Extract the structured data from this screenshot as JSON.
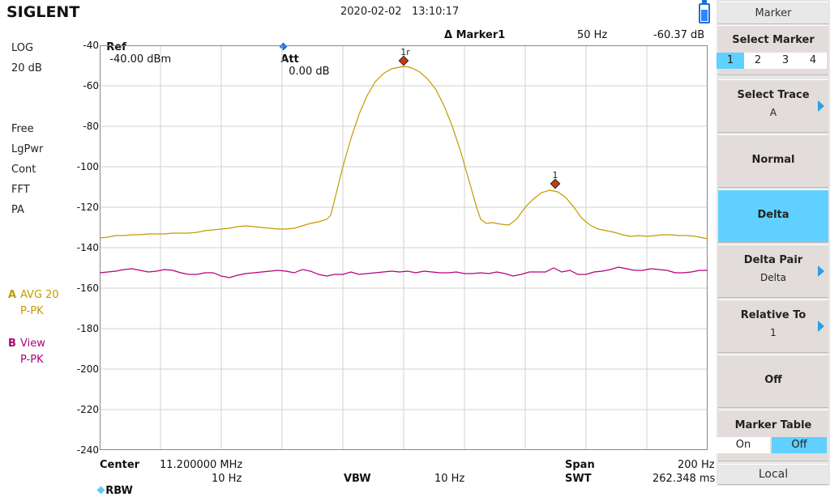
{
  "brand": "SIGLENT",
  "datetime": "2020-02-02   13:10:17",
  "header": {
    "ref_label": "Ref",
    "ref_value": "-40.00 dBm",
    "att_label": "Att",
    "att_value": "0.00 dB",
    "marker_label": "Δ Marker1",
    "marker_freq": "50 Hz",
    "marker_value": "-60.37 dB"
  },
  "left_labels": {
    "scale_type": "LOG",
    "scale_div": "20 dB",
    "sweep_mode": "Free",
    "detector": "LgPwr",
    "cont": "Cont",
    "fft": "FFT",
    "preamp": "PA"
  },
  "traces": {
    "a_letter": "A",
    "a_mode": "AVG 20",
    "a_det": "P-PK",
    "a_color": "#c49a00",
    "b_letter": "B",
    "b_mode": "View",
    "b_det": "P-PK",
    "b_color": "#b0007a"
  },
  "y_ticks": [
    "-40",
    "-60",
    "-80",
    "-100",
    "-120",
    "-140",
    "-160",
    "-180",
    "-200",
    "-220",
    "-240"
  ],
  "markers": {
    "ref_label": "1r",
    "delta_label": "1"
  },
  "footer": {
    "center_label": "Center",
    "center_value": "11.200000 MHz",
    "span_label": "Span",
    "span_value": "200 Hz",
    "rbw_label": "RBW",
    "rbw_value": "10 Hz",
    "vbw_label": "VBW",
    "vbw_value": "10 Hz",
    "swt_label": "SWT",
    "swt_value": "262.348 ms"
  },
  "panel": {
    "title": "Marker",
    "select_marker_label": "Select Marker",
    "marker_options": [
      "1",
      "2",
      "3",
      "4"
    ],
    "selected_marker": "1",
    "select_trace_label": "Select Trace",
    "select_trace_value": "A",
    "normal_label": "Normal",
    "delta_label": "Delta",
    "delta_pair_label": "Delta Pair",
    "delta_pair_value": "Delta",
    "relative_to_label": "Relative To",
    "relative_to_value": "1",
    "off_label": "Off",
    "marker_table_label": "Marker Table",
    "marker_table_on": "On",
    "marker_table_off": "Off",
    "marker_table_state": "Off",
    "local_label": "Local"
  }
}
